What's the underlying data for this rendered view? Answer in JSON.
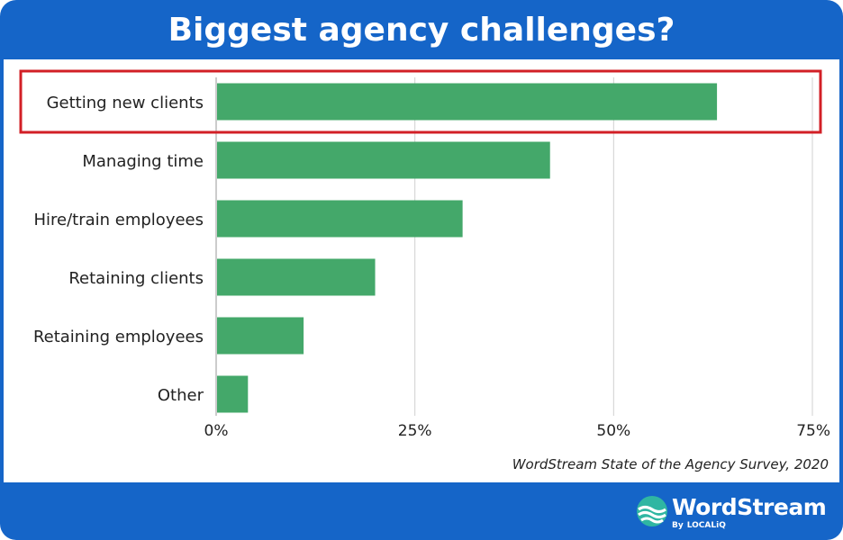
{
  "header": {
    "title": "Biggest agency challenges?"
  },
  "chart_data": {
    "type": "bar",
    "orientation": "horizontal",
    "title": "Biggest agency challenges?",
    "categories": [
      "Getting new clients",
      "Managing time",
      "Hire/train employees",
      "Retaining clients",
      "Retaining employees",
      "Other"
    ],
    "values": [
      63,
      42,
      31,
      20,
      11,
      4
    ],
    "xlim": [
      0,
      75
    ],
    "xticks": [
      0,
      25,
      50,
      75
    ],
    "xtick_labels": [
      "0%",
      "25%",
      "50%",
      "75%"
    ],
    "unit": "%",
    "grid": "vertical",
    "bar_color": "#44a86a",
    "grid_color": "#d0d0d0",
    "highlight": {
      "category": "Getting new clients",
      "color": "#d21f26"
    },
    "source": "WordStream State of the Agency Survey, 2020"
  },
  "footer": {
    "brand": "WordStream",
    "byline_prefix": "By",
    "byline_brand": "LOCALiQ",
    "bg_color": "#1565c8"
  }
}
